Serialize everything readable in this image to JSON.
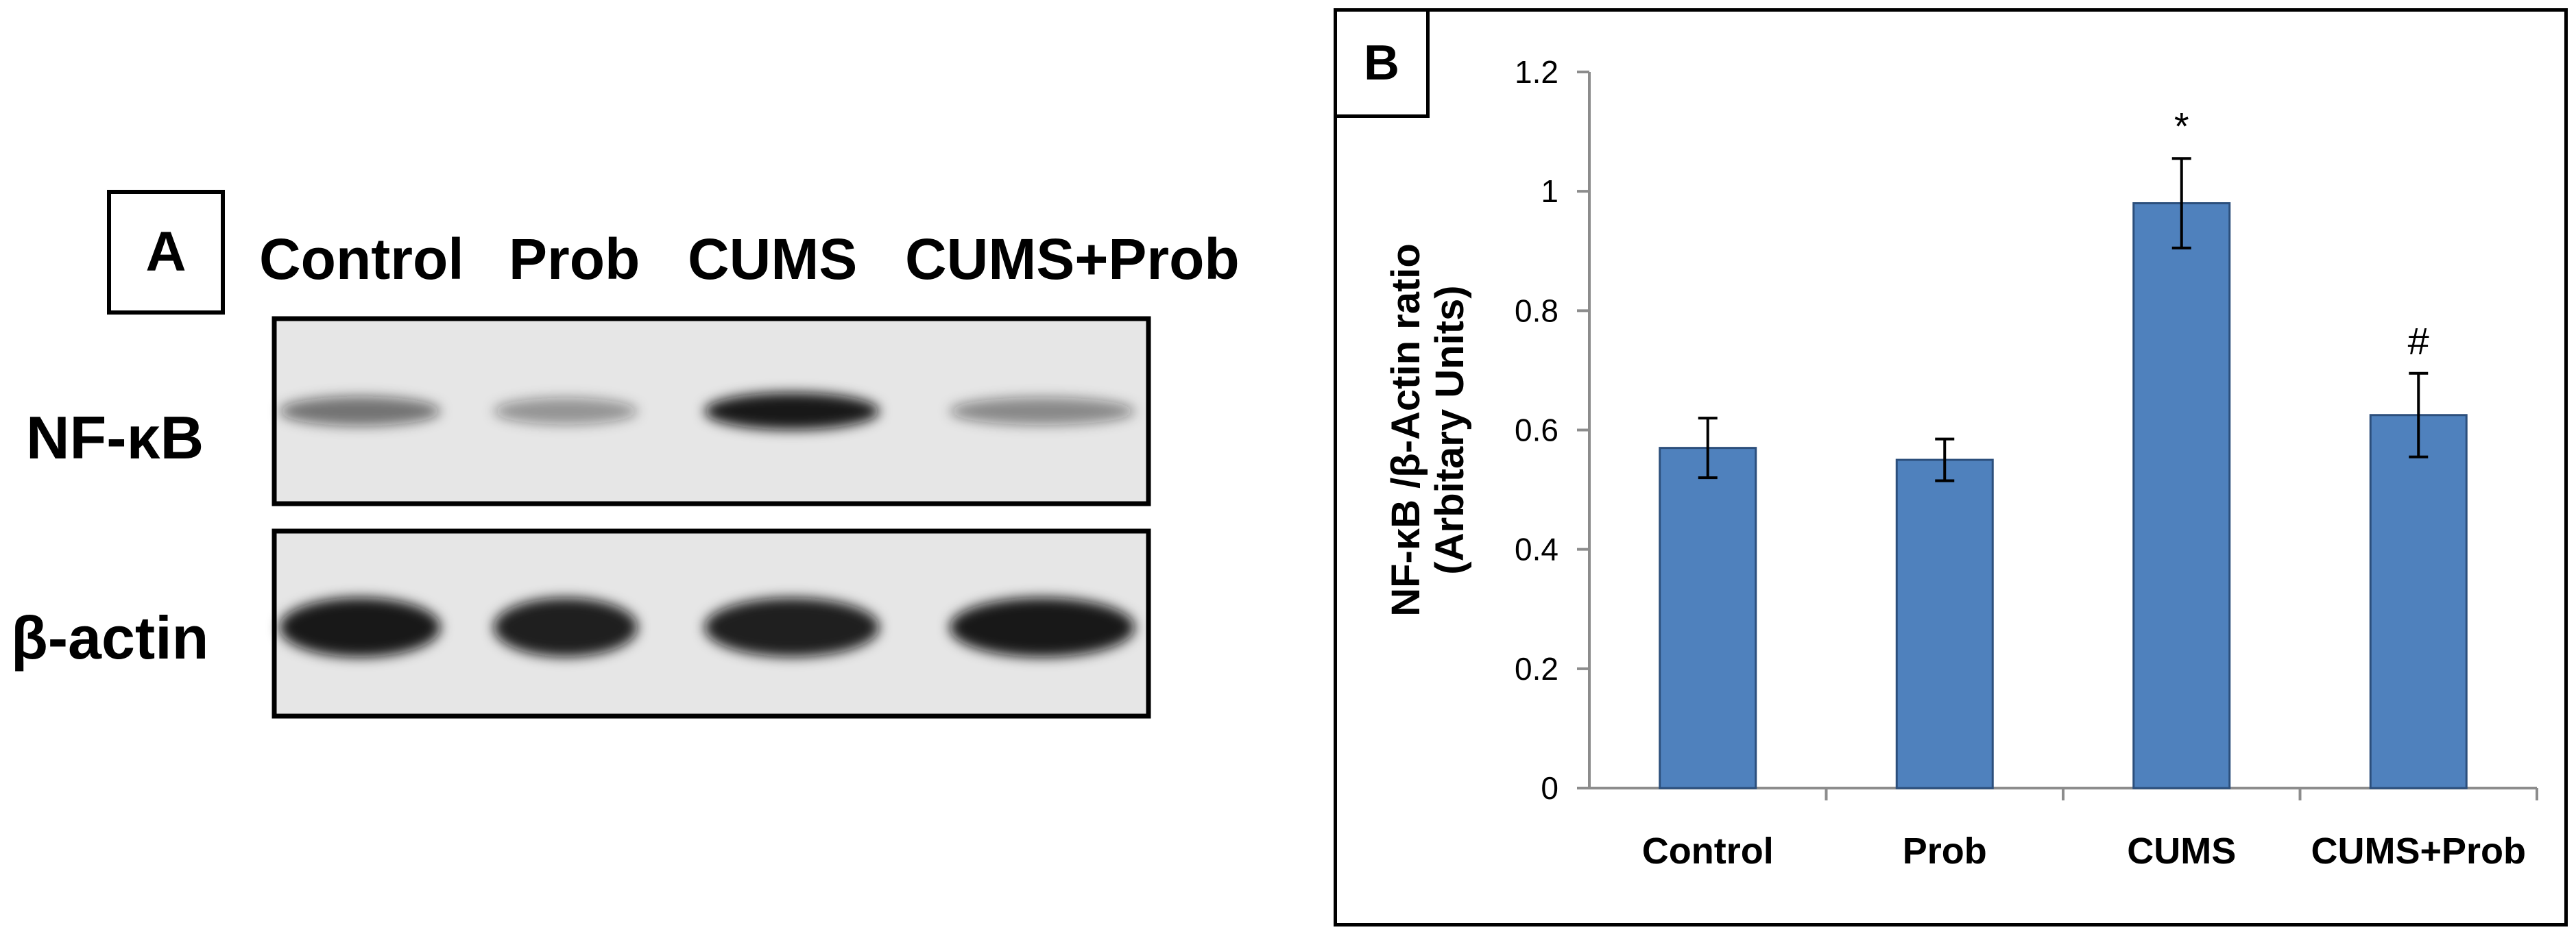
{
  "panel_a": {
    "label": "A",
    "lanes": [
      "Control",
      "Prob",
      "CUMS",
      "CUMS+Prob"
    ],
    "rows": [
      {
        "label": "NF-κB",
        "band_intensity": [
          0.55,
          0.4,
          0.95,
          0.45
        ]
      },
      {
        "label": "β-actin",
        "band_intensity": [
          0.95,
          0.92,
          0.92,
          0.95
        ]
      }
    ],
    "colors": {
      "membrane": "#e6e6e6",
      "band": "#111111",
      "frame": "#000000"
    }
  },
  "panel_b": {
    "label": "B"
  },
  "chart_data": {
    "type": "bar",
    "title": "",
    "xlabel": "",
    "ylabel_lines": [
      "NF-κB /β-Actin ratio",
      "(Arbitary Units)"
    ],
    "categories": [
      "Control",
      "Prob",
      "CUMS",
      "CUMS+Prob"
    ],
    "values": [
      0.57,
      0.55,
      0.98,
      0.625
    ],
    "errors": [
      0.05,
      0.035,
      0.075,
      0.07
    ],
    "annotations": [
      "",
      "",
      "*",
      "#"
    ],
    "ylim": [
      0,
      1.2
    ],
    "yticks": [
      0,
      0.2,
      0.4,
      0.6,
      0.8,
      1,
      1.2
    ],
    "ytick_labels": [
      "0",
      "0.2",
      "0.4",
      "0.6",
      "0.8",
      "1",
      "1.2"
    ],
    "grid": false,
    "legend": "none",
    "colors": {
      "bar": "#4f81bd",
      "bar_edge": "#2c4f7c",
      "axis": "#8c8c8c"
    }
  }
}
